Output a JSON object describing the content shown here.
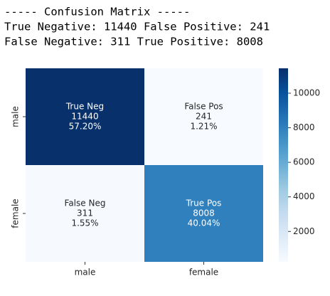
{
  "header": {
    "title": "----- Confusion Matrix -----",
    "lines": [
      "True Negative: 11440 False Positive: 241",
      "False Negative: 311 True Positive: 8008"
    ]
  },
  "chart_data": {
    "type": "heatmap",
    "x_categories": [
      "male",
      "female"
    ],
    "y_categories": [
      "male",
      "female"
    ],
    "values": [
      [
        11440,
        241
      ],
      [
        311,
        8008
      ]
    ],
    "cell_names": [
      [
        "True Neg",
        "False Pos"
      ],
      [
        "False Neg",
        "True Pos"
      ]
    ],
    "percent_labels": [
      [
        "57.20%",
        "1.21%"
      ],
      [
        "1.55%",
        "40.04%"
      ]
    ],
    "clim": [
      241,
      11440
    ],
    "cbar_ticks": [
      2000,
      4000,
      6000,
      8000,
      10000
    ],
    "colormap": [
      "#f7fbff",
      "#deebf7",
      "#c6dbef",
      "#9ecae1",
      "#6baed6",
      "#4292c6",
      "#2171b5",
      "#08519c",
      "#08306b"
    ]
  }
}
